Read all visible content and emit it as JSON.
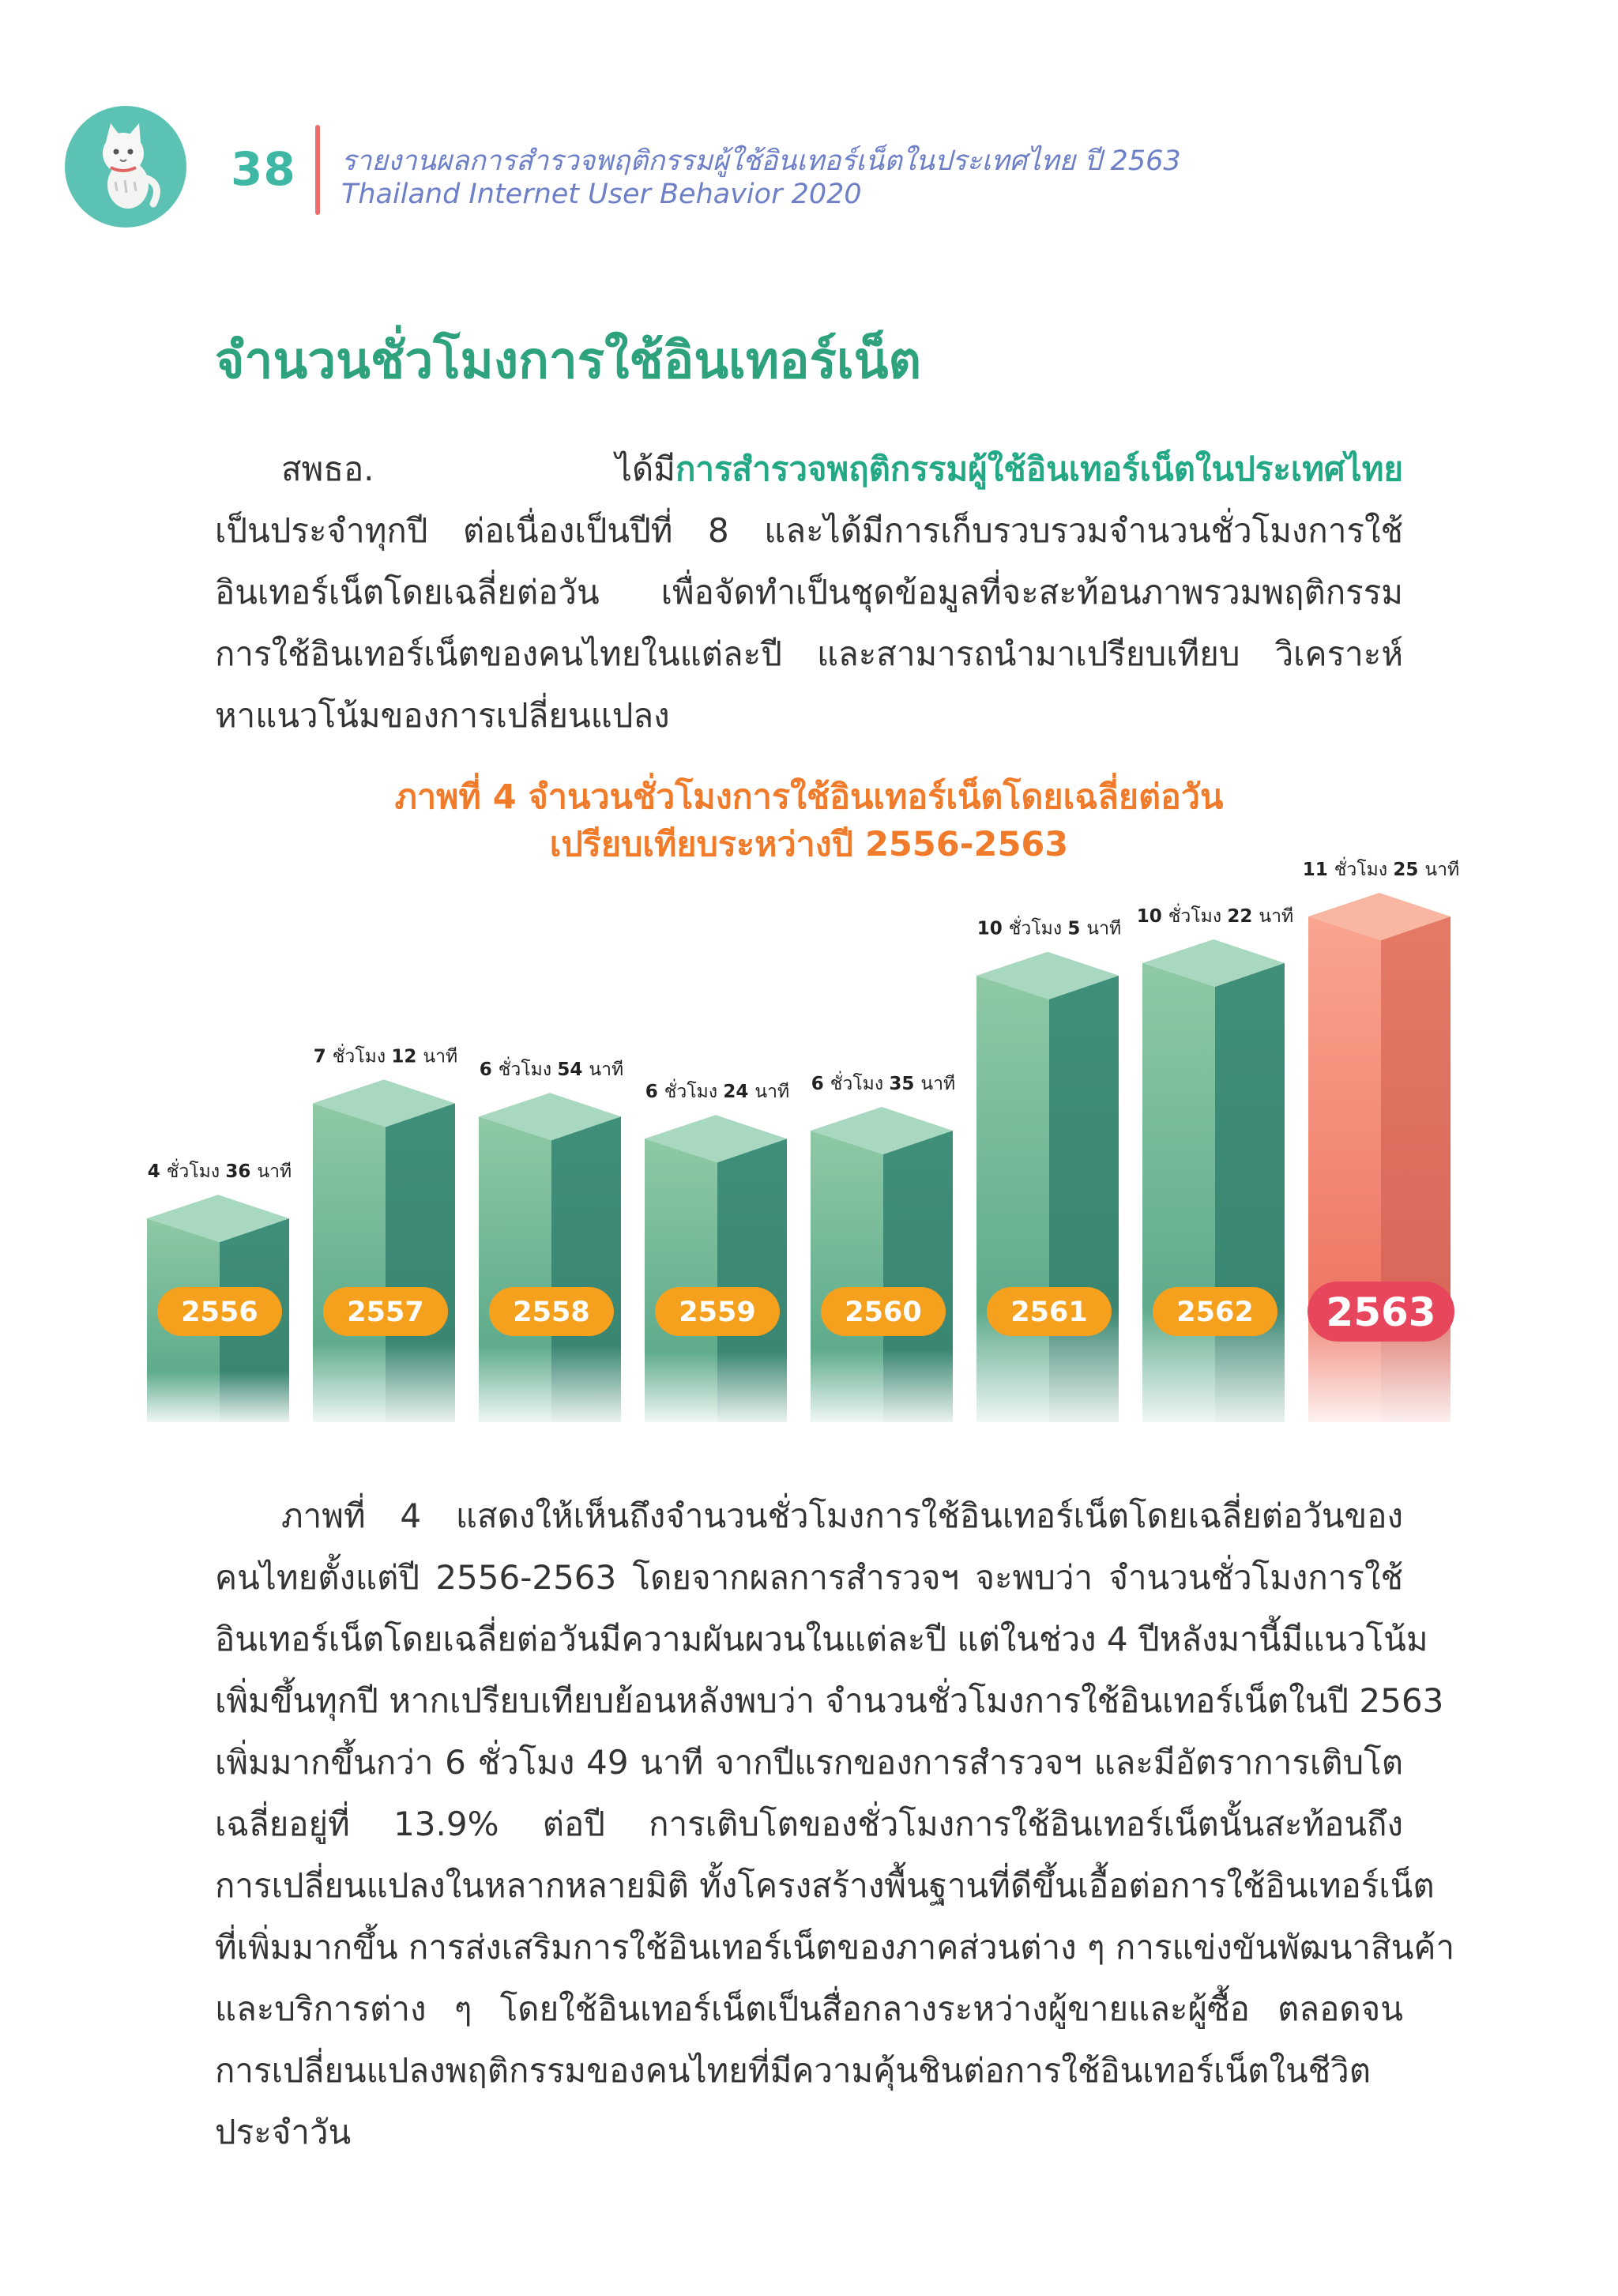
{
  "header": {
    "page_number": "38",
    "title_th": "รายงานผลการสำรวจพฤติกรรมผู้ใช้อินเทอร์เน็ตในประเทศไทย ปี 2563",
    "title_en": "Thailand Internet User Behavior 2020"
  },
  "section_title": "จำนวนชั่วโมงการใช้อินเทอร์เน็ต",
  "intro": {
    "lead": "สพธอ. ได้มี",
    "highlight": "การสำรวจพฤติกรรมผู้ใช้อินเทอร์เน็ตในประเทศไทย",
    "lines": [
      "เป็นประจำทุกปี ต่อเนื่องเป็นปีที่ 8 และได้มีการเก็บรวบรวมจำนวนชั่วโมงการใช้",
      "อินเทอร์เน็ตโดยเฉลี่ยต่อวัน เพื่อจัดทำเป็นชุดข้อมูลที่จะสะท้อนภาพรวมพฤติกรรม",
      "การใช้อินเทอร์เน็ตของคนไทยในแต่ละปี และสามารถนำมาเปรียบเทียบ วิเคราะห์",
      "หาแนวโน้มของการเปลี่ยนแปลง"
    ]
  },
  "chart_data": {
    "type": "bar",
    "title": "ภาพที่ 4 จำนวนชั่วโมงการใช้อินเทอร์เน็ตโดยเฉลี่ยต่อวัน",
    "subtitle": "เปรียบเทียบระหว่างปี 2556-2563",
    "categories": [
      "2556",
      "2557",
      "2558",
      "2559",
      "2560",
      "2561",
      "2562",
      "2563"
    ],
    "values": [
      276,
      432,
      414,
      384,
      395,
      605,
      622,
      685
    ],
    "unit": "minutes",
    "value_labels": [
      {
        "h": "4",
        "m": "36"
      },
      {
        "h": "7",
        "m": "12"
      },
      {
        "h": "6",
        "m": "54"
      },
      {
        "h": "6",
        "m": "24"
      },
      {
        "h": "6",
        "m": "35"
      },
      {
        "h": "10",
        "m": "5"
      },
      {
        "h": "10",
        "m": "22"
      },
      {
        "h": "11",
        "m": "25"
      }
    ],
    "hour_word": "ชั่วโมง",
    "minute_word": "นาที",
    "highlight_index": 7,
    "colors": {
      "bar": "#5aa98a",
      "bar_light": "#a8d8bf",
      "bar_highlight": "#ef7562",
      "bar_highlight_light": "#f9b7a3",
      "year_badge": "#f6a11e",
      "year_badge_highlight": "#e8465c"
    }
  },
  "body": {
    "lines": [
      "ภาพที่ 4 แสดงให้เห็นถึงจำนวนชั่วโมงการใช้อินเทอร์เน็ตโดยเฉลี่ยต่อวันของ",
      "คนไทยตั้งแต่ปี 2556-2563 โดยจากผลการสำรวจฯ จะพบว่า จำนวนชั่วโมงการใช้",
      "อินเทอร์เน็ตโดยเฉลี่ยต่อวันมีความผันผวนในแต่ละปี แต่ในช่วง 4 ปีหลังมานี้มีแนวโน้ม",
      "เพิ่มขึ้นทุกปี หากเปรียบเทียบย้อนหลังพบว่า จำนวนชั่วโมงการใช้อินเทอร์เน็ตในปี 2563",
      "เพิ่มมากขึ้นกว่า 6 ชั่วโมง 49 นาที จากปีแรกของการสำรวจฯ และมีอัตราการเติบโต",
      "เฉลี่ยอยู่ที่ 13.9% ต่อปี การเติบโตของชั่วโมงการใช้อินเทอร์เน็ตนั้นสะท้อนถึง",
      "การเปลี่ยนแปลงในหลากหลายมิติ ทั้งโครงสร้างพื้นฐานที่ดีขึ้นเอื้อต่อการใช้อินเทอร์เน็ต",
      "ที่เพิ่มมากขึ้น การส่งเสริมการใช้อินเทอร์เน็ตของภาคส่วนต่าง ๆ การแข่งขันพัฒนาสินค้า",
      "และบริการต่าง ๆ โดยใช้อินเทอร์เน็ตเป็นสื่อกลางระหว่างผู้ขายและผู้ซื้อ ตลอดจน",
      "การเปลี่ยนแปลงพฤติกรรมของคนไทยที่มีความคุ้นชินต่อการใช้อินเทอร์เน็ตในชีวิต",
      "ประจำวัน"
    ]
  }
}
